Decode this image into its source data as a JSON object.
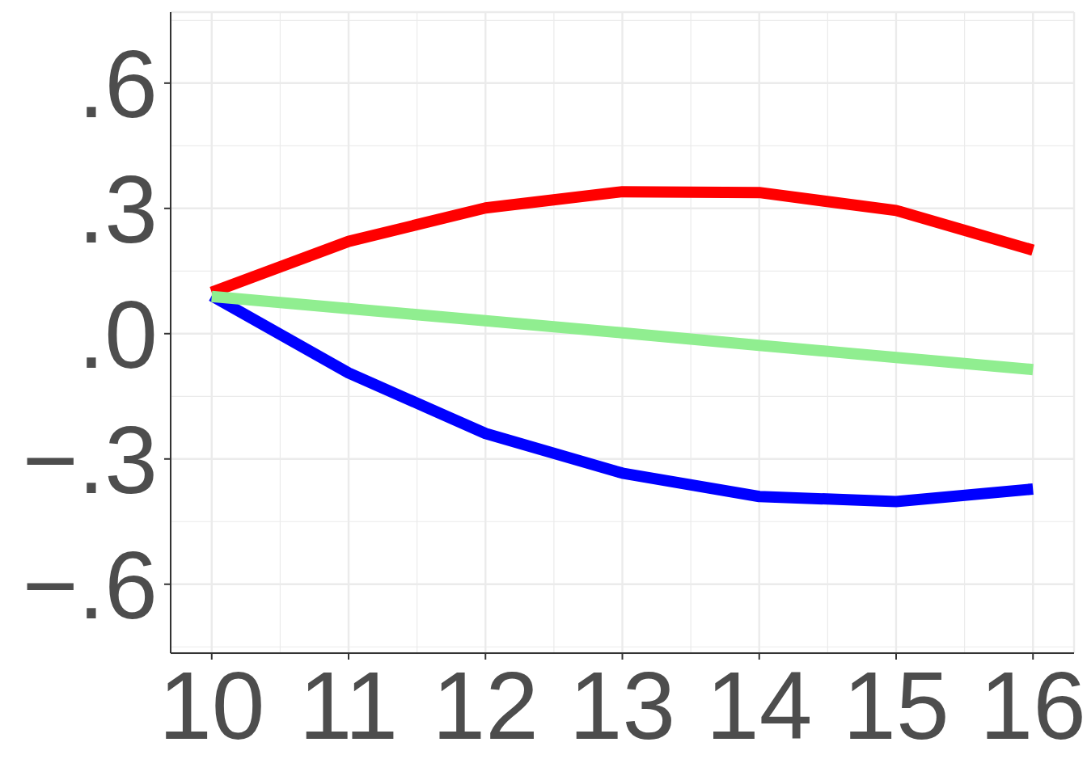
{
  "chart_data": {
    "type": "line",
    "x": [
      10,
      11,
      12,
      13,
      14,
      15,
      16
    ],
    "series": [
      {
        "color": "#ff0000",
        "values": [
          0.099,
          0.221,
          0.301,
          0.34,
          0.338,
          0.295,
          0.2
        ]
      },
      {
        "color": "#0000ff",
        "values": [
          0.091,
          -0.094,
          -0.239,
          -0.334,
          -0.39,
          -0.402,
          -0.372
        ]
      },
      {
        "color": "#90ee90",
        "values": [
          0.089,
          0.06,
          0.031,
          0.002,
          -0.028,
          -0.057,
          -0.086
        ]
      }
    ],
    "xlim": [
      9.7,
      16.3
    ],
    "ylim": [
      -0.765,
      0.77
    ],
    "xticks": [
      10,
      11,
      12,
      13,
      14,
      15,
      16
    ],
    "yticks": [
      {
        "value": -0.6,
        "label": "−.6"
      },
      {
        "value": -0.3,
        "label": "−.3"
      },
      {
        "value": 0,
        "label": ".0"
      },
      {
        "value": 0.3,
        "label": ".3"
      },
      {
        "value": 0.6,
        "label": ".6"
      }
    ],
    "grid": true,
    "line_style": "solid"
  }
}
